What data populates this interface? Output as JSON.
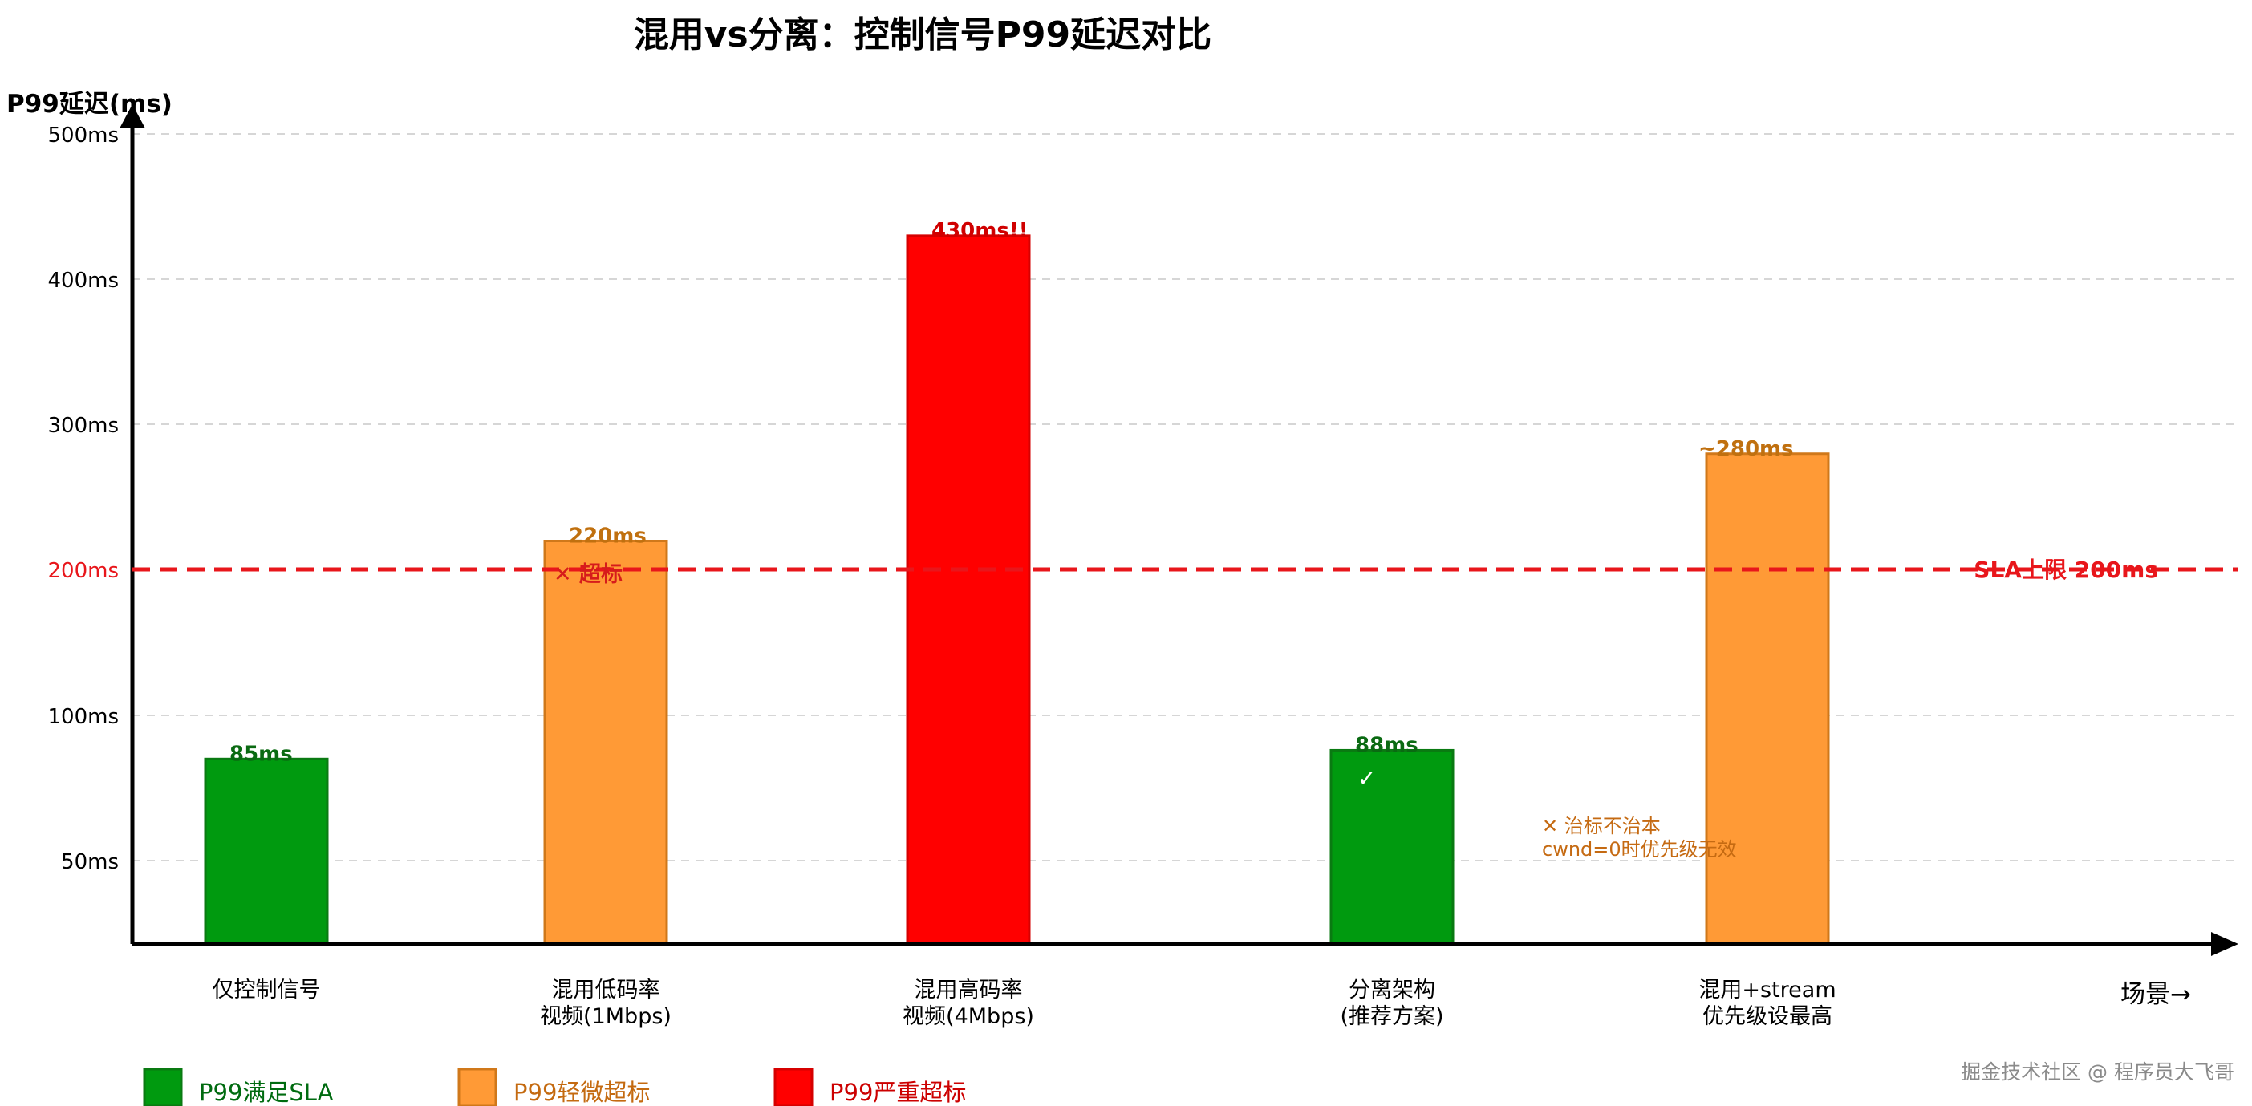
{
  "chart_data": {
    "type": "bar",
    "title": "混用vs分离：控制信号P99延迟对比",
    "ylabel": "P99延迟(ms)",
    "xlabel": "场景→",
    "y_ticks": [
      {
        "label": "50ms",
        "value": 50
      },
      {
        "label": "100ms",
        "value": 100
      },
      {
        "label": "200ms",
        "value": 200,
        "highlight": true
      },
      {
        "label": "300ms",
        "value": 300
      },
      {
        "label": "400ms",
        "value": 400
      },
      {
        "label": "500ms",
        "value": 500
      }
    ],
    "categories": [
      "仅控制信号\n",
      "混用低码率\n视频(1Mbps)",
      "混用高码率\n视频(4Mbps)",
      "分离架构\n(推荐方案)",
      "混用+stream\n优先级设最高"
    ],
    "bars": [
      {
        "category": "仅控制信号",
        "value": 85,
        "label": "85ms",
        "status": "ok"
      },
      {
        "category": "混用低码率视频(1Mbps)",
        "value": 220,
        "label": "220ms",
        "status": "minor"
      },
      {
        "category": "混用高码率视频(4Mbps)",
        "value": 430,
        "label": "430ms!!",
        "status": "severe",
        "note": "clipped at axis top"
      },
      {
        "category": "分离架构(推荐方案)",
        "value": 88,
        "label": "88ms",
        "status": "ok"
      },
      {
        "category": "混用+stream优先级设最高",
        "value": 280,
        "label": "~280ms",
        "status": "minor"
      }
    ],
    "reference_line": {
      "value": 200,
      "label": "SLA上限 200ms",
      "color": "#e8161b",
      "style": "dashed"
    },
    "annotations": [
      {
        "text": "✕ 超标",
        "bar": 1
      },
      {
        "text": "✓",
        "bar": 3
      },
      {
        "lines": [
          "✕ 治标不治本",
          "cwnd=0时优先级无效"
        ],
        "bar": 4
      }
    ],
    "legend": {
      "placement": "bottom-left",
      "items": [
        {
          "label": "P99满足SLA",
          "color": "#009a0f",
          "text_color": "#006b10"
        },
        {
          "label": "P99轻微超标",
          "color": "#ff9a36",
          "text_color": "#c46a10"
        },
        {
          "label": "P99严重超标",
          "color": "#ff0000",
          "text_color": "#cc0000"
        }
      ]
    },
    "watermark": "掘金技术社区 @ 程序员大飞哥",
    "grid": "horizontal dashed",
    "colors": {
      "ok": "#009a0f",
      "minor": "#ff9a36",
      "severe": "#ff0000",
      "axis": "#000000"
    }
  }
}
